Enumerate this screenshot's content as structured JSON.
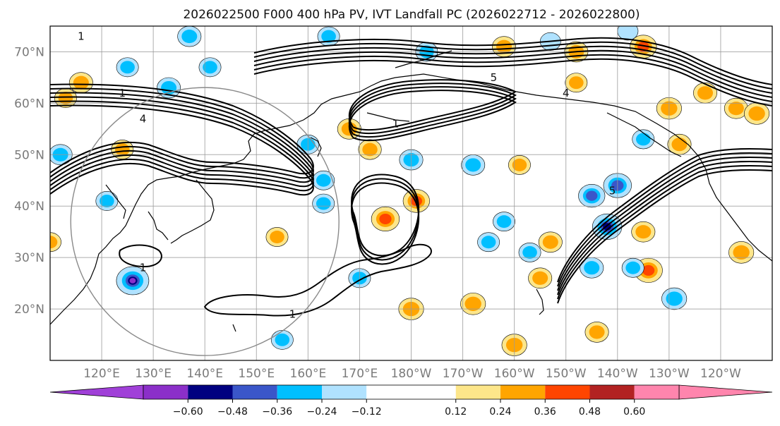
{
  "chart_data": {
    "type": "contour",
    "title": "2026022500 F000 400 hPa PV, IVT Landfall PC (2026022712 - 2026022800)",
    "projection": "PlateCarree, central longitude 180",
    "lon_range": [
      110,
      250
    ],
    "lat_range": [
      10,
      75
    ],
    "lat_ticks": [
      {
        "value": 20,
        "label": "20°N"
      },
      {
        "value": 30,
        "label": "30°N"
      },
      {
        "value": 40,
        "label": "40°N"
      },
      {
        "value": 50,
        "label": "50°N"
      },
      {
        "value": 60,
        "label": "60°N"
      },
      {
        "value": 70,
        "label": "70°N"
      }
    ],
    "lon_ticks": [
      {
        "value": 120,
        "label": "120°E"
      },
      {
        "value": 130,
        "label": "130°E"
      },
      {
        "value": 140,
        "label": "140°E"
      },
      {
        "value": 150,
        "label": "150°E"
      },
      {
        "value": 160,
        "label": "160°E"
      },
      {
        "value": 170,
        "label": "170°E"
      },
      {
        "value": 180,
        "label": "180°W"
      },
      {
        "value": 190,
        "label": "170°W"
      },
      {
        "value": 200,
        "label": "160°W"
      },
      {
        "value": 210,
        "label": "150°W"
      },
      {
        "value": 220,
        "label": "140°W"
      },
      {
        "value": 230,
        "label": "130°W"
      },
      {
        "value": 240,
        "label": "120°W"
      }
    ],
    "grid_lon_values": [
      120,
      130,
      140,
      150,
      160,
      170,
      180,
      190,
      200,
      210,
      220,
      230,
      240
    ],
    "grid_lat_values": [
      20,
      30,
      40,
      50,
      60,
      70
    ],
    "colorbar": {
      "boundaries": [
        -0.72,
        -0.6,
        -0.48,
        -0.36,
        -0.24,
        -0.12,
        0.12,
        0.24,
        0.36,
        0.48,
        0.6,
        0.72
      ],
      "colors": [
        "#8b2fc9",
        "#000080",
        "#3a56c9",
        "#00bfff",
        "#b0e2ff",
        "#ffffff",
        "#fde68a",
        "#ffa500",
        "#ff4500",
        "#b22222",
        "#ff85ad"
      ],
      "under_color": "#a040d8",
      "over_color": "#ff85ad",
      "tick_labels": [
        "−0.60",
        "−0.48",
        "−0.36",
        "−0.24",
        "−0.12",
        "0.12",
        "0.24",
        "0.36",
        "0.48",
        "0.60"
      ],
      "tick_values": [
        -0.6,
        -0.48,
        -0.36,
        -0.24,
        -0.12,
        0.12,
        0.24,
        0.36,
        0.48,
        0.6
      ]
    },
    "pv_contour_labels": [
      {
        "text": "1",
        "lon": 116,
        "lat": 73
      },
      {
        "text": "1",
        "lon": 124,
        "lat": 62
      },
      {
        "text": "4",
        "lon": 128,
        "lat": 57
      },
      {
        "text": "1",
        "lon": 128,
        "lat": 28
      },
      {
        "text": "1",
        "lon": 157,
        "lat": 19
      },
      {
        "text": "4",
        "lon": 210,
        "lat": 62
      },
      {
        "text": "5",
        "lon": 196,
        "lat": 65
      },
      {
        "text": "5",
        "lon": 219,
        "lat": 43
      },
      {
        "text": "1",
        "lon": 177,
        "lat": 56
      }
    ],
    "circle_center": {
      "lon": 140,
      "lat": 37
    },
    "circle_radius_deg": 26,
    "shaded_anomalies": [
      {
        "lon": 126,
        "lat": 25.5,
        "value": -0.6
      },
      {
        "lon": 175,
        "lat": 37.5,
        "value": 0.45
      },
      {
        "lon": 181,
        "lat": 41,
        "value": 0.4
      },
      {
        "lon": 218,
        "lat": 36,
        "value": -0.5
      },
      {
        "lon": 220,
        "lat": 44,
        "value": -0.45
      },
      {
        "lon": 215,
        "lat": 42,
        "value": -0.4
      },
      {
        "lon": 198,
        "lat": 37,
        "value": -0.25
      },
      {
        "lon": 205,
        "lat": 26,
        "value": 0.3
      },
      {
        "lon": 226,
        "lat": 27.5,
        "value": 0.45
      },
      {
        "lon": 231,
        "lat": 22,
        "value": -0.35
      },
      {
        "lon": 140,
        "lat": 42,
        "value": 0
      },
      {
        "lon": 180,
        "lat": 20,
        "value": 0.35
      },
      {
        "lon": 113,
        "lat": 61,
        "value": 0.25
      },
      {
        "lon": 116,
        "lat": 64,
        "value": 0.3
      },
      {
        "lon": 133,
        "lat": 63,
        "value": -0.3
      },
      {
        "lon": 125,
        "lat": 67,
        "value": -0.25
      },
      {
        "lon": 141,
        "lat": 67,
        "value": -0.25
      },
      {
        "lon": 168,
        "lat": 55,
        "value": 0.3
      },
      {
        "lon": 172,
        "lat": 51,
        "value": 0.28
      },
      {
        "lon": 160,
        "lat": 52,
        "value": -0.25
      },
      {
        "lon": 180,
        "lat": 49,
        "value": -0.3
      },
      {
        "lon": 192,
        "lat": 48,
        "value": -0.3
      },
      {
        "lon": 163,
        "lat": 45,
        "value": -0.25
      },
      {
        "lon": 154,
        "lat": 34,
        "value": 0.25
      },
      {
        "lon": 195,
        "lat": 33,
        "value": -0.25
      },
      {
        "lon": 203,
        "lat": 31,
        "value": -0.25
      },
      {
        "lon": 207,
        "lat": 33,
        "value": 0.3
      },
      {
        "lon": 225,
        "lat": 35,
        "value": 0.3
      },
      {
        "lon": 223,
        "lat": 28,
        "value": -0.25
      },
      {
        "lon": 215,
        "lat": 28,
        "value": -0.3
      },
      {
        "lon": 244,
        "lat": 31,
        "value": 0.35
      },
      {
        "lon": 230,
        "lat": 59,
        "value": 0.35
      },
      {
        "lon": 225,
        "lat": 71,
        "value": 0.4
      },
      {
        "lon": 225,
        "lat": 53,
        "value": -0.25
      },
      {
        "lon": 232,
        "lat": 52,
        "value": 0.3
      },
      {
        "lon": 237,
        "lat": 62,
        "value": 0.3
      },
      {
        "lon": 243,
        "lat": 59,
        "value": 0.3
      },
      {
        "lon": 247,
        "lat": 58,
        "value": 0.35
      },
      {
        "lon": 212,
        "lat": 70,
        "value": 0.3
      },
      {
        "lon": 198,
        "lat": 71,
        "value": 0.3
      },
      {
        "lon": 201,
        "lat": 48,
        "value": 0.25
      },
      {
        "lon": 192,
        "lat": 21,
        "value": 0.35
      },
      {
        "lon": 200,
        "lat": 13,
        "value": 0.35
      },
      {
        "lon": 216,
        "lat": 15.5,
        "value": 0.3
      },
      {
        "lon": 170,
        "lat": 26,
        "value": -0.25
      },
      {
        "lon": 155,
        "lat": 14,
        "value": -0.25
      },
      {
        "lon": 164,
        "lat": 73,
        "value": -0.25
      },
      {
        "lon": 112,
        "lat": 50,
        "value": -0.3
      },
      {
        "lon": 124,
        "lat": 51,
        "value": 0.25
      },
      {
        "lon": 207,
        "lat": 72,
        "value": -0.2
      },
      {
        "lon": 137,
        "lat": 73,
        "value": -0.3
      },
      {
        "lon": 183,
        "lat": 70,
        "value": -0.25
      },
      {
        "lon": 222,
        "lat": 74,
        "value": -0.2
      },
      {
        "lon": 121,
        "lat": 41,
        "value": -0.25
      },
      {
        "lon": 110,
        "lat": 33,
        "value": 0.25
      },
      {
        "lon": 163,
        "lat": 40.5,
        "value": -0.25
      },
      {
        "lon": 212,
        "lat": 64,
        "value": 0.25
      }
    ]
  }
}
